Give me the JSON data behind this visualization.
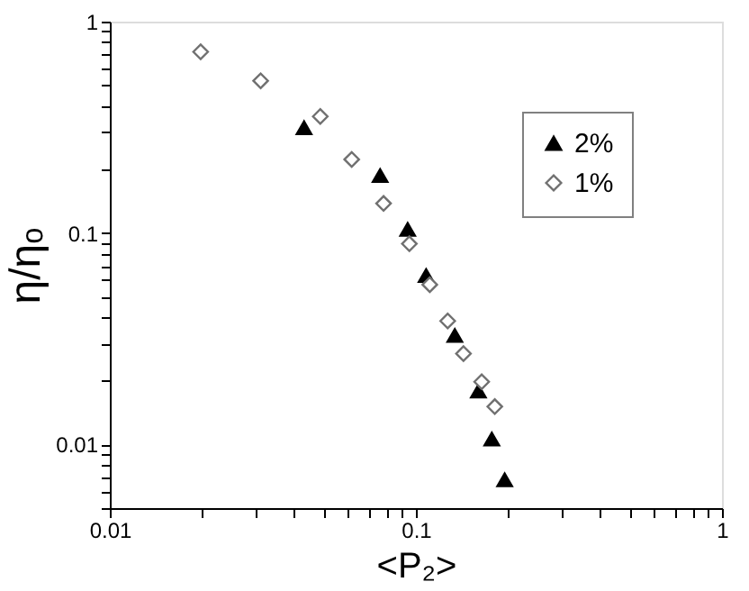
{
  "chart_data": {
    "type": "scatter",
    "xlabel": "<P₂>",
    "ylabel": "η/ηₒ",
    "log": "xy",
    "grid": false,
    "legend": "top right",
    "xlim": [
      0.01,
      1
    ],
    "ylim": [
      0.005,
      1
    ],
    "xticks": [
      0.01,
      {
        "value": 0.02,
        "label": null
      },
      {
        "value": 0.03,
        "label": null
      },
      {
        "value": 0.04,
        "label": null
      },
      {
        "value": 0.05,
        "label": null
      },
      {
        "value": 0.06,
        "label": null
      },
      {
        "value": 0.07,
        "label": null
      },
      {
        "value": 0.08,
        "label": null
      },
      {
        "value": 0.09,
        "label": null
      },
      0.1,
      {
        "value": 0.2,
        "label": null
      },
      {
        "value": 0.3,
        "label": null
      },
      {
        "value": 0.4,
        "label": null
      },
      {
        "value": 0.5,
        "label": null
      },
      {
        "value": 0.6,
        "label": null
      },
      {
        "value": 0.7,
        "label": null
      },
      {
        "value": 0.8,
        "label": null
      },
      {
        "value": 0.9,
        "label": null
      },
      1
    ],
    "yticks": [
      {
        "value": 0.005,
        "label": null
      },
      {
        "value": 0.006,
        "label": null
      },
      {
        "value": 0.007,
        "label": null
      },
      {
        "value": 0.008,
        "label": null
      },
      {
        "value": 0.009,
        "label": null
      },
      0.01,
      {
        "value": 0.02,
        "label": null
      },
      {
        "value": 0.03,
        "label": null
      },
      {
        "value": 0.04,
        "label": null
      },
      {
        "value": 0.05,
        "label": null
      },
      {
        "value": 0.06,
        "label": null
      },
      {
        "value": 0.07,
        "label": null
      },
      {
        "value": 0.08,
        "label": null
      },
      {
        "value": 0.09,
        "label": null
      },
      0.1,
      {
        "value": 0.2,
        "label": null
      },
      {
        "value": 0.3,
        "label": null
      },
      {
        "value": 0.4,
        "label": null
      },
      {
        "value": 0.5,
        "label": null
      },
      {
        "value": 0.6,
        "label": null
      },
      {
        "value": 0.7,
        "label": null
      },
      {
        "value": 0.8,
        "label": null
      },
      {
        "value": 0.9,
        "label": null
      },
      1
    ],
    "series": [
      {
        "name": "2%",
        "color": "#000000",
        "marker": "triangle",
        "x": [
          0.0431,
          0.0764,
          0.094,
          0.108,
          0.134,
          0.16,
          0.177,
          0.195
        ],
        "values": [
          0.315,
          0.187,
          0.104,
          0.063,
          0.0328,
          0.0179,
          0.0106,
          0.0068
        ]
      },
      {
        "name": "1%",
        "color": "#707070",
        "marker": "diamond",
        "x": [
          0.0198,
          0.0311,
          0.0487,
          0.0617,
          0.0784,
          0.0952,
          0.111,
          0.127,
          0.143,
          0.164,
          0.181
        ],
        "values": [
          0.72,
          0.525,
          0.356,
          0.223,
          0.138,
          0.089,
          0.057,
          0.0384,
          0.0269,
          0.0198,
          0.0151
        ]
      }
    ]
  }
}
